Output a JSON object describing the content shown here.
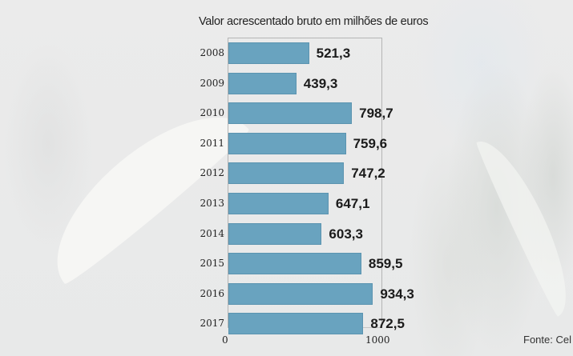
{
  "title": "Valor acrescentado bruto em milhões de euros",
  "source": "Fonte: Cel",
  "axis": {
    "ticks": [
      "0",
      "1000"
    ]
  },
  "colors": {
    "bar": "#69a3bf",
    "bar_border": "#5b94b0",
    "text": "#1b1b1b"
  },
  "chart_data": {
    "type": "bar",
    "orientation": "horizontal",
    "title": "Valor acrescentado bruto em milhões de euros",
    "xlabel": "",
    "ylabel": "",
    "xlim": [
      0,
      1000
    ],
    "x_ticks": [
      0,
      1000
    ],
    "grid": false,
    "legend": null,
    "categories": [
      "2008",
      "2009",
      "2010",
      "2011",
      "2012",
      "2013",
      "2014",
      "2015",
      "2016",
      "2017"
    ],
    "values": [
      521.3,
      439.3,
      798.7,
      759.6,
      747.2,
      647.1,
      603.3,
      859.5,
      934.3,
      872.5
    ],
    "labels": [
      "521,3",
      "439,3",
      "798,7",
      "759,6",
      "747,2",
      "647,1",
      "603,3",
      "859,5",
      "934,3",
      "872,5"
    ],
    "annotations": [
      "Fonte: Cel"
    ]
  }
}
